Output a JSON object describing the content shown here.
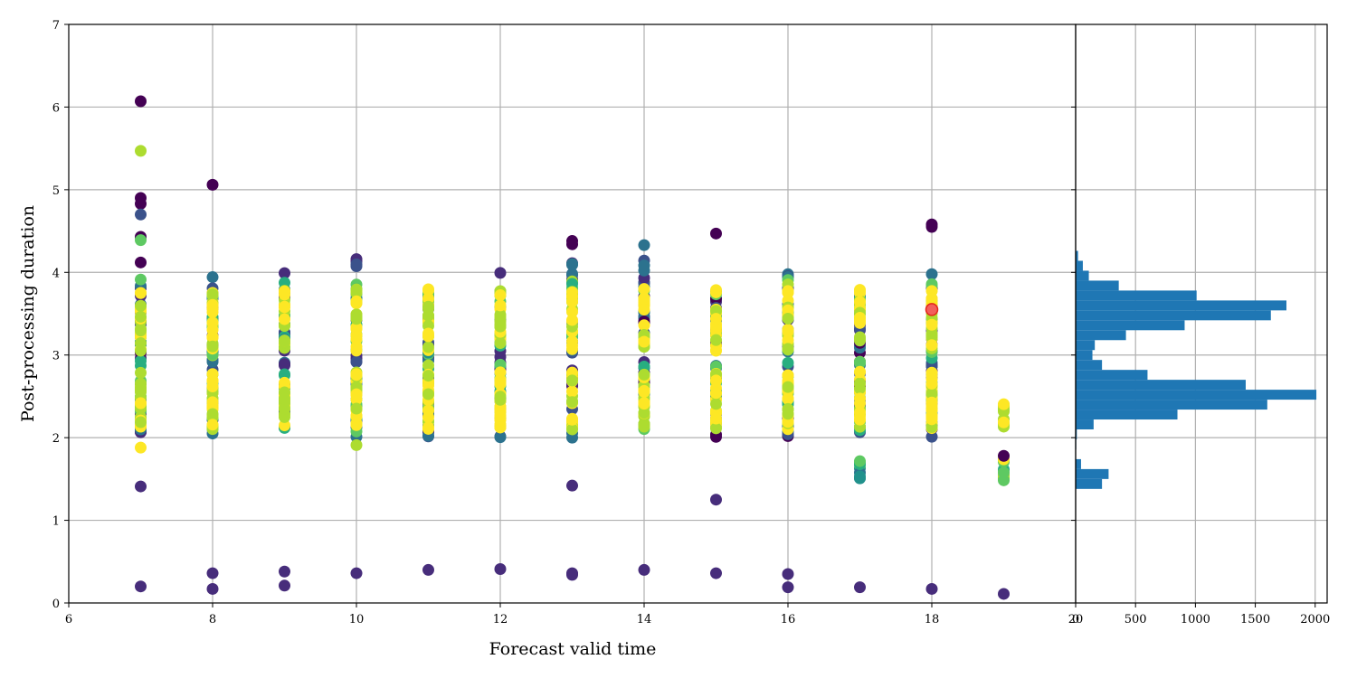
{
  "chart_data": [
    {
      "type": "scatter",
      "xlabel": "Forecast valid time",
      "ylabel": "Post-processing duration",
      "xlim": [
        6,
        20
      ],
      "ylim": [
        0,
        7
      ],
      "x_ticks": [
        "6",
        "8",
        "10",
        "12",
        "14",
        "16",
        "18",
        "20"
      ],
      "y_ticks": [
        "0",
        "1",
        "2",
        "3",
        "4",
        "5",
        "6",
        "7"
      ],
      "grid": true,
      "colormap": "viridis",
      "colors": [
        "#440154",
        "#472d7b",
        "#3b528b",
        "#2c728e",
        "#21918c",
        "#28ae80",
        "#5ec962",
        "#addc30",
        "#fde725"
      ],
      "highlight_color": "#f25f5c",
      "outliers": [
        {
          "x": 7,
          "y": 6.07,
          "c": 0.0
        },
        {
          "x": 7,
          "y": 5.47,
          "c": 0.85
        },
        {
          "x": 7,
          "y": 4.9,
          "c": 0.05
        },
        {
          "x": 7,
          "y": 4.83,
          "c": 0.05
        },
        {
          "x": 7,
          "y": 4.7,
          "c": 0.3
        },
        {
          "x": 7,
          "y": 4.43,
          "c": 0.05
        },
        {
          "x": 7,
          "y": 4.39,
          "c": 0.75
        },
        {
          "x": 7,
          "y": 4.12,
          "c": 0.05
        },
        {
          "x": 7,
          "y": 1.88,
          "c": 1.0
        },
        {
          "x": 7,
          "y": 1.41,
          "c": 0.1
        },
        {
          "x": 7,
          "y": 0.2,
          "c": 0.1
        },
        {
          "x": 8,
          "y": 5.06,
          "c": 0.05
        },
        {
          "x": 8,
          "y": 0.36,
          "c": 0.1
        },
        {
          "x": 8,
          "y": 0.17,
          "c": 0.1
        },
        {
          "x": 9,
          "y": 0.38,
          "c": 0.1
        },
        {
          "x": 9,
          "y": 0.21,
          "c": 0.1
        },
        {
          "x": 10,
          "y": 1.91,
          "c": 0.9
        },
        {
          "x": 10,
          "y": 0.36,
          "c": 0.1
        },
        {
          "x": 11,
          "y": 0.4,
          "c": 0.1
        },
        {
          "x": 12,
          "y": 0.41,
          "c": 0.1
        },
        {
          "x": 13,
          "y": 4.38,
          "c": 0.05
        },
        {
          "x": 13,
          "y": 4.34,
          "c": 0.05
        },
        {
          "x": 13,
          "y": 1.42,
          "c": 0.1
        },
        {
          "x": 13,
          "y": 0.36,
          "c": 0.1
        },
        {
          "x": 13,
          "y": 0.34,
          "c": 0.1
        },
        {
          "x": 14,
          "y": 4.33,
          "c": 0.4
        },
        {
          "x": 14,
          "y": 0.4,
          "c": 0.1
        },
        {
          "x": 15,
          "y": 4.47,
          "c": 0.05
        },
        {
          "x": 15,
          "y": 1.25,
          "c": 0.1
        },
        {
          "x": 15,
          "y": 0.36,
          "c": 0.1
        },
        {
          "x": 16,
          "y": 0.35,
          "c": 0.1
        },
        {
          "x": 16,
          "y": 0.19,
          "c": 0.1
        },
        {
          "x": 17,
          "y": 0.19,
          "c": 0.1
        },
        {
          "x": 18,
          "y": 4.58,
          "c": 0.05
        },
        {
          "x": 18,
          "y": 4.55,
          "c": 0.05
        },
        {
          "x": 18,
          "y": 0.17,
          "c": 0.1
        },
        {
          "x": 19,
          "y": 0.11,
          "c": 0.1
        }
      ],
      "highlight_point": {
        "x": 18,
        "y": 3.55
      }
    },
    {
      "type": "bar",
      "orientation": "horizontal",
      "xlim": [
        0,
        2100
      ],
      "x_ticks": [
        "0",
        "500",
        "1000",
        "1500",
        "2000"
      ],
      "ylim": [
        0,
        7
      ],
      "grid": true,
      "color": "#1f77b4",
      "bin_width": 0.12,
      "bins": [
        {
          "y": 1.44,
          "value": 220
        },
        {
          "y": 1.56,
          "value": 275
        },
        {
          "y": 1.68,
          "value": 45
        },
        {
          "y": 1.92,
          "value": 5
        },
        {
          "y": 2.04,
          "value": 10
        },
        {
          "y": 2.16,
          "value": 150
        },
        {
          "y": 2.28,
          "value": 850
        },
        {
          "y": 2.4,
          "value": 1600
        },
        {
          "y": 2.52,
          "value": 2010
        },
        {
          "y": 2.64,
          "value": 1420
        },
        {
          "y": 2.76,
          "value": 600
        },
        {
          "y": 2.88,
          "value": 220
        },
        {
          "y": 3.0,
          "value": 140
        },
        {
          "y": 3.12,
          "value": 160
        },
        {
          "y": 3.24,
          "value": 420
        },
        {
          "y": 3.36,
          "value": 910
        },
        {
          "y": 3.48,
          "value": 1630
        },
        {
          "y": 3.6,
          "value": 1760
        },
        {
          "y": 3.72,
          "value": 1010
        },
        {
          "y": 3.84,
          "value": 360
        },
        {
          "y": 3.96,
          "value": 110
        },
        {
          "y": 4.08,
          "value": 60
        },
        {
          "y": 4.2,
          "value": 20
        }
      ]
    }
  ]
}
